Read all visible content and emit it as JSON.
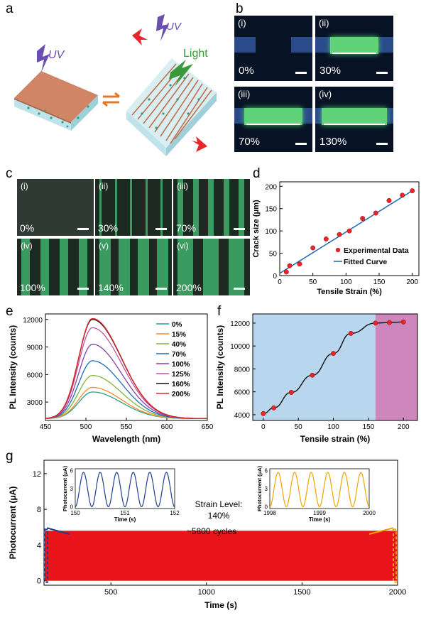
{
  "panel_labels": {
    "a": "a",
    "b": "b",
    "c": "c",
    "d": "d",
    "e": "e",
    "f": "f",
    "g": "g"
  },
  "schematic": {
    "uv_left": "UV",
    "uv_right": "UV",
    "light": "Light"
  },
  "photos_b": [
    {
      "roman": "(i)",
      "strain": "0%"
    },
    {
      "roman": "(ii)",
      "strain": "30%"
    },
    {
      "roman": "(iii)",
      "strain": "70%"
    },
    {
      "roman": "(iv)",
      "strain": "130%"
    }
  ],
  "micrographs_c": [
    {
      "roman": "(i)",
      "strain": "0%"
    },
    {
      "roman": "(ii)",
      "strain": "30%"
    },
    {
      "roman": "(iii)",
      "strain": "70%"
    },
    {
      "roman": "(iv)",
      "strain": "100%"
    },
    {
      "roman": "(v)",
      "strain": "140%"
    },
    {
      "roman": "(vi)",
      "strain": "200%"
    }
  ],
  "chart_data": [
    {
      "id": "d",
      "type": "scatter",
      "xlabel": "Tensile Strain (%)",
      "ylabel": "Crack size (μm)",
      "xlim": [
        0,
        210
      ],
      "ylim": [
        0,
        210
      ],
      "xticks": [
        0,
        50,
        100,
        150,
        200
      ],
      "yticks": [
        0,
        50,
        100,
        150,
        200
      ],
      "series": [
        {
          "name": "Experimental Data",
          "kind": "points",
          "color": "#e8252a",
          "x": [
            10,
            15,
            30,
            50,
            70,
            90,
            105,
            125,
            145,
            165,
            185,
            200
          ],
          "y": [
            8,
            22,
            26,
            62,
            82,
            92,
            100,
            128,
            140,
            168,
            180,
            190
          ]
        },
        {
          "name": "Fitted Curve",
          "kind": "line",
          "color": "#2b6fb6",
          "x": [
            0,
            200
          ],
          "y": [
            5,
            190
          ]
        }
      ],
      "legend": "bottom-right"
    },
    {
      "id": "e",
      "type": "line",
      "xlabel": "Wavelength (nm)",
      "ylabel": "PL Intensity (counts)",
      "xlim": [
        450,
        650
      ],
      "ylim": [
        1000,
        12600
      ],
      "xticks": [
        450,
        500,
        550,
        600,
        650
      ],
      "yticks": [
        3000,
        6000,
        9000,
        12000
      ],
      "peak_nm": 508,
      "baseline": 1200,
      "series": [
        {
          "name": "0%",
          "peak": 4100,
          "color": "#2a9d8f"
        },
        {
          "name": "15%",
          "peak": 4600,
          "color": "#f28c28"
        },
        {
          "name": "40%",
          "peak": 5900,
          "color": "#7fb73a"
        },
        {
          "name": "70%",
          "peak": 7500,
          "color": "#1f6db5"
        },
        {
          "name": "100%",
          "peak": 9300,
          "color": "#8b3fa8"
        },
        {
          "name": "125%",
          "peak": 11100,
          "color": "#c2549a"
        },
        {
          "name": "160%",
          "peak": 12000,
          "color": "#111111"
        },
        {
          "name": "200%",
          "peak": 12100,
          "color": "#e8252a"
        }
      ],
      "legend": "top-right"
    },
    {
      "id": "f",
      "type": "line",
      "xlabel": "Tensile strain (%)",
      "ylabel": "PL Intensity (counts)",
      "xlim": [
        -15,
        220
      ],
      "ylim": [
        3500,
        12800
      ],
      "xticks": [
        0,
        50,
        100,
        150,
        200
      ],
      "yticks": [
        4000,
        6000,
        8000,
        10000,
        12000
      ],
      "x": [
        0,
        15,
        40,
        70,
        100,
        125,
        160,
        180,
        200
      ],
      "y": [
        4100,
        4600,
        5950,
        7450,
        9350,
        11100,
        12000,
        12050,
        12100
      ],
      "point_color": "#e8252a",
      "line_color": "#111111",
      "regions": [
        {
          "from": -15,
          "to": 160,
          "color": "#b8d6ee"
        },
        {
          "from": 160,
          "to": 220,
          "color": "#cd87bd"
        }
      ]
    },
    {
      "id": "g",
      "type": "area",
      "xlabel": "Time (s)",
      "ylabel": "Photocurrent (μA)",
      "xlim": [
        150,
        2000
      ],
      "ylim": [
        -0.5,
        13.5
      ],
      "xticks": [
        500,
        1000,
        1500,
        2000
      ],
      "yticks": [
        0,
        4,
        8,
        12
      ],
      "band_max": 5.6,
      "color": "#e8141a",
      "annotation_strain": "Strain Level:",
      "annotation_strain_value": "140%",
      "annotation_cycles": "~5800 cycles",
      "insets": [
        {
          "xlabel": "Time (s)",
          "ylabel": "Photocurrent (μA)",
          "xticks": [
            150,
            151,
            152
          ],
          "yticks": [
            0,
            3,
            6
          ],
          "xlim": [
            150,
            152
          ],
          "color": "#1f3f8a",
          "cycles": 6,
          "amp_max": 5.7
        },
        {
          "xlabel": "Time (s)",
          "ylabel": "Photocurrent (μA)",
          "xticks": [
            1998,
            1999,
            2000
          ],
          "yticks": [
            0,
            3,
            6
          ],
          "xlim": [
            1998,
            2000
          ],
          "color": "#f2a400",
          "cycles": 6,
          "amp_max": 5.7
        }
      ]
    }
  ]
}
